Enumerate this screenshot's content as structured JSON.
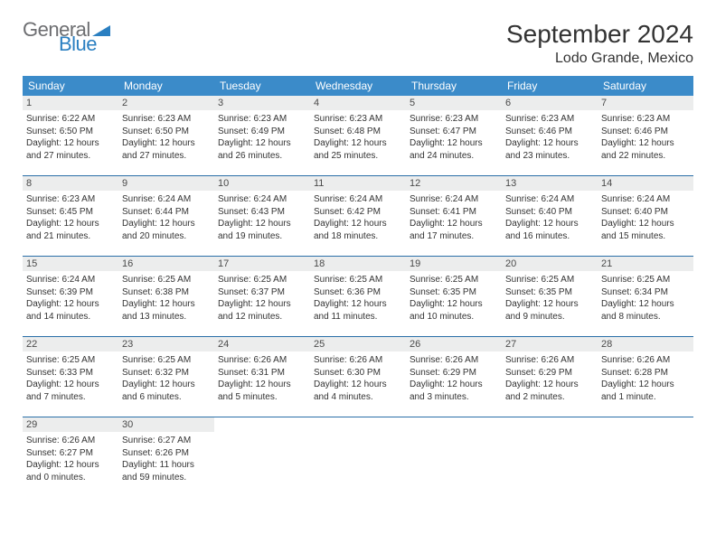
{
  "logo": {
    "general": "General",
    "blue": "Blue"
  },
  "title": "September 2024",
  "location": "Lodo Grande, Mexico",
  "colors": {
    "header_bg": "#3b8bc9",
    "header_text": "#ffffff",
    "daynum_bg": "#eceded",
    "row_border": "#2a6fa8",
    "logo_gray": "#6d6e71",
    "logo_blue": "#2a7fc1",
    "triangle": "#2a7fc1"
  },
  "weekdays": [
    "Sunday",
    "Monday",
    "Tuesday",
    "Wednesday",
    "Thursday",
    "Friday",
    "Saturday"
  ],
  "weeks": [
    [
      {
        "num": "1",
        "sunrise": "6:22 AM",
        "sunset": "6:50 PM",
        "daylight": "12 hours and 27 minutes."
      },
      {
        "num": "2",
        "sunrise": "6:23 AM",
        "sunset": "6:50 PM",
        "daylight": "12 hours and 27 minutes."
      },
      {
        "num": "3",
        "sunrise": "6:23 AM",
        "sunset": "6:49 PM",
        "daylight": "12 hours and 26 minutes."
      },
      {
        "num": "4",
        "sunrise": "6:23 AM",
        "sunset": "6:48 PM",
        "daylight": "12 hours and 25 minutes."
      },
      {
        "num": "5",
        "sunrise": "6:23 AM",
        "sunset": "6:47 PM",
        "daylight": "12 hours and 24 minutes."
      },
      {
        "num": "6",
        "sunrise": "6:23 AM",
        "sunset": "6:46 PM",
        "daylight": "12 hours and 23 minutes."
      },
      {
        "num": "7",
        "sunrise": "6:23 AM",
        "sunset": "6:46 PM",
        "daylight": "12 hours and 22 minutes."
      }
    ],
    [
      {
        "num": "8",
        "sunrise": "6:23 AM",
        "sunset": "6:45 PM",
        "daylight": "12 hours and 21 minutes."
      },
      {
        "num": "9",
        "sunrise": "6:24 AM",
        "sunset": "6:44 PM",
        "daylight": "12 hours and 20 minutes."
      },
      {
        "num": "10",
        "sunrise": "6:24 AM",
        "sunset": "6:43 PM",
        "daylight": "12 hours and 19 minutes."
      },
      {
        "num": "11",
        "sunrise": "6:24 AM",
        "sunset": "6:42 PM",
        "daylight": "12 hours and 18 minutes."
      },
      {
        "num": "12",
        "sunrise": "6:24 AM",
        "sunset": "6:41 PM",
        "daylight": "12 hours and 17 minutes."
      },
      {
        "num": "13",
        "sunrise": "6:24 AM",
        "sunset": "6:40 PM",
        "daylight": "12 hours and 16 minutes."
      },
      {
        "num": "14",
        "sunrise": "6:24 AM",
        "sunset": "6:40 PM",
        "daylight": "12 hours and 15 minutes."
      }
    ],
    [
      {
        "num": "15",
        "sunrise": "6:24 AM",
        "sunset": "6:39 PM",
        "daylight": "12 hours and 14 minutes."
      },
      {
        "num": "16",
        "sunrise": "6:25 AM",
        "sunset": "6:38 PM",
        "daylight": "12 hours and 13 minutes."
      },
      {
        "num": "17",
        "sunrise": "6:25 AM",
        "sunset": "6:37 PM",
        "daylight": "12 hours and 12 minutes."
      },
      {
        "num": "18",
        "sunrise": "6:25 AM",
        "sunset": "6:36 PM",
        "daylight": "12 hours and 11 minutes."
      },
      {
        "num": "19",
        "sunrise": "6:25 AM",
        "sunset": "6:35 PM",
        "daylight": "12 hours and 10 minutes."
      },
      {
        "num": "20",
        "sunrise": "6:25 AM",
        "sunset": "6:35 PM",
        "daylight": "12 hours and 9 minutes."
      },
      {
        "num": "21",
        "sunrise": "6:25 AM",
        "sunset": "6:34 PM",
        "daylight": "12 hours and 8 minutes."
      }
    ],
    [
      {
        "num": "22",
        "sunrise": "6:25 AM",
        "sunset": "6:33 PM",
        "daylight": "12 hours and 7 minutes."
      },
      {
        "num": "23",
        "sunrise": "6:25 AM",
        "sunset": "6:32 PM",
        "daylight": "12 hours and 6 minutes."
      },
      {
        "num": "24",
        "sunrise": "6:26 AM",
        "sunset": "6:31 PM",
        "daylight": "12 hours and 5 minutes."
      },
      {
        "num": "25",
        "sunrise": "6:26 AM",
        "sunset": "6:30 PM",
        "daylight": "12 hours and 4 minutes."
      },
      {
        "num": "26",
        "sunrise": "6:26 AM",
        "sunset": "6:29 PM",
        "daylight": "12 hours and 3 minutes."
      },
      {
        "num": "27",
        "sunrise": "6:26 AM",
        "sunset": "6:29 PM",
        "daylight": "12 hours and 2 minutes."
      },
      {
        "num": "28",
        "sunrise": "6:26 AM",
        "sunset": "6:28 PM",
        "daylight": "12 hours and 1 minute."
      }
    ],
    [
      {
        "num": "29",
        "sunrise": "6:26 AM",
        "sunset": "6:27 PM",
        "daylight": "12 hours and 0 minutes."
      },
      {
        "num": "30",
        "sunrise": "6:27 AM",
        "sunset": "6:26 PM",
        "daylight": "11 hours and 59 minutes."
      },
      null,
      null,
      null,
      null,
      null
    ]
  ]
}
